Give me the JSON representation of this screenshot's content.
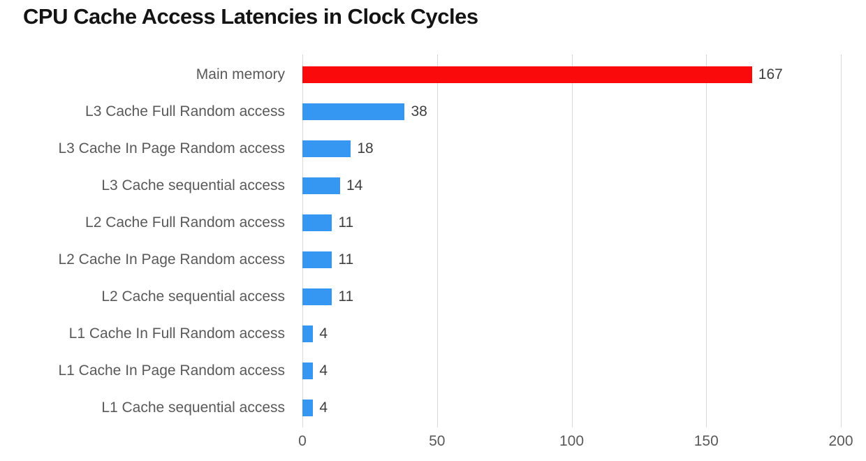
{
  "title": "CPU Cache Access Latencies in Clock Cycles",
  "colors": {
    "highlight_bar": "#fa0a0a",
    "default_bar": "#3697f3",
    "gridline": "#d9d9d9",
    "category_label": "#595959",
    "value_label": "#3f3f3f",
    "axis_label": "#595959",
    "title": "#141414",
    "background": "#ffffff"
  },
  "chart_data": {
    "type": "bar",
    "orientation": "horizontal",
    "title": "CPU Cache Access Latencies in Clock Cycles",
    "xlabel": "",
    "ylabel": "",
    "categories": [
      "Main memory",
      "L3 Cache Full Random access",
      "L3 Cache In Page Random access",
      "L3 Cache sequential access",
      "L2 Cache Full Random access",
      "L2 Cache In Page Random access",
      "L2 Cache sequential access",
      "L1 Cache In Full Random access",
      "L1 Cache In Page Random access",
      "L1 Cache sequential access"
    ],
    "values": [
      167,
      38,
      18,
      14,
      11,
      11,
      11,
      4,
      4,
      4
    ],
    "data_labels": [
      "167",
      "38",
      "18",
      "14",
      "11",
      "11",
      "11",
      "4",
      "4",
      "4"
    ],
    "bar_colors": [
      "#fa0a0a",
      "#3697f3",
      "#3697f3",
      "#3697f3",
      "#3697f3",
      "#3697f3",
      "#3697f3",
      "#3697f3",
      "#3697f3",
      "#3697f3"
    ],
    "xlim": [
      0,
      200
    ],
    "xticks": [
      0,
      50,
      100,
      150,
      200
    ],
    "xtick_labels": [
      "0",
      "50",
      "100",
      "150",
      "200"
    ],
    "grid": "vertical",
    "legend": "none"
  }
}
